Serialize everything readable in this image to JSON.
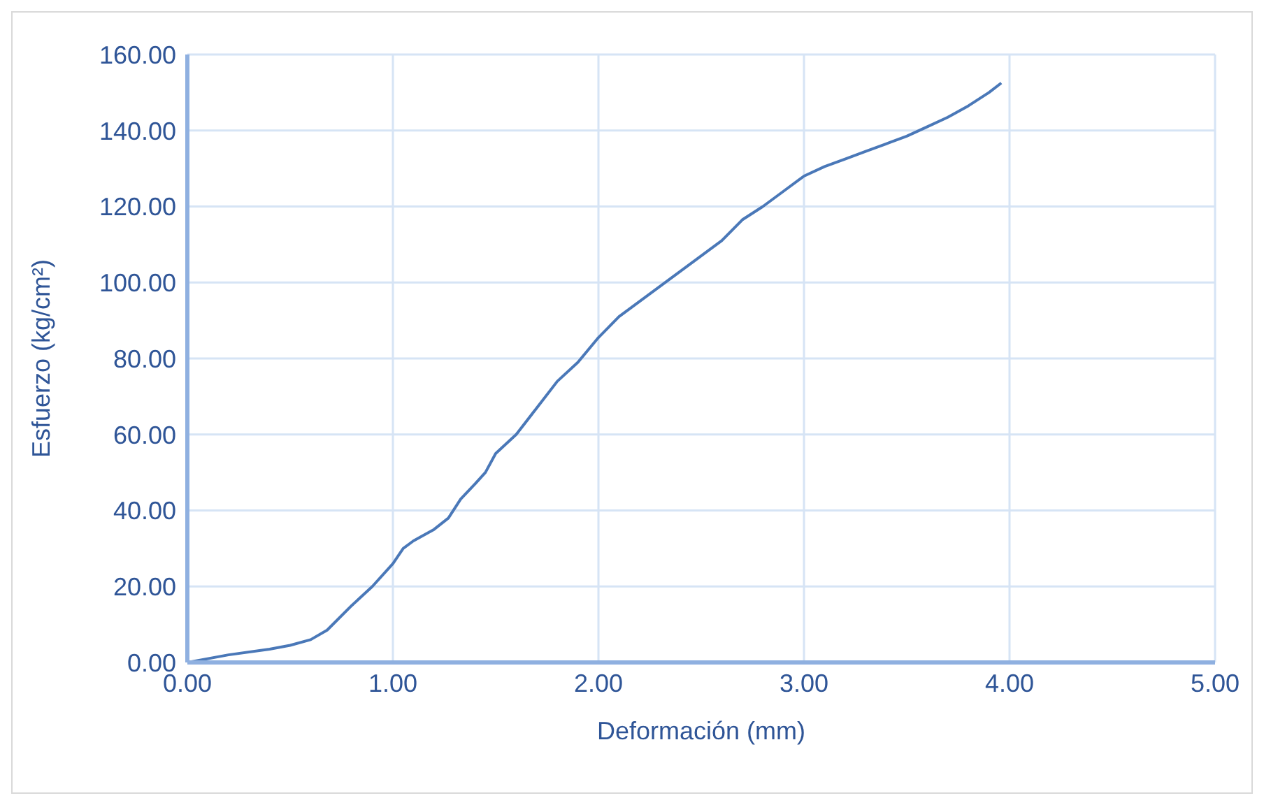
{
  "chart_data": {
    "type": "line",
    "xlabel": "Deformación (mm)",
    "ylabel": "Esfuerzo (kg/cm²)",
    "xlim": [
      0,
      5
    ],
    "xticks": [
      {
        "value": 0,
        "label": "0.00"
      },
      {
        "value": 1,
        "label": "1.00"
      },
      {
        "value": 2,
        "label": "2.00"
      },
      {
        "value": 3,
        "label": "3.00"
      },
      {
        "value": 4,
        "label": "4.00"
      },
      {
        "value": 5,
        "label": "5.00"
      }
    ],
    "ylim": [
      0,
      160
    ],
    "yticks": [
      {
        "value": 0,
        "label": "0.00"
      },
      {
        "value": 20,
        "label": "20.00"
      },
      {
        "value": 40,
        "label": "40.00"
      },
      {
        "value": 60,
        "label": "60.00"
      },
      {
        "value": 80,
        "label": "80.00"
      },
      {
        "value": 100,
        "label": "100.00"
      },
      {
        "value": 120,
        "label": "120.00"
      },
      {
        "value": 140,
        "label": "140.00"
      },
      {
        "value": 160,
        "label": "160.00"
      }
    ],
    "grid": true,
    "marker": "none",
    "line_style": "solid",
    "series": [
      {
        "color": "#4a78b8",
        "x": [
          0,
          0.2,
          0.4,
          0.5,
          0.6,
          0.68,
          0.8,
          0.9,
          1.0,
          1.05,
          1.1,
          1.2,
          1.27,
          1.33,
          1.4,
          1.45,
          1.5,
          1.6,
          1.7,
          1.8,
          1.9,
          2.0,
          2.1,
          2.2,
          2.3,
          2.4,
          2.5,
          2.6,
          2.7,
          2.8,
          2.9,
          3.0,
          3.1,
          3.2,
          3.3,
          3.4,
          3.5,
          3.6,
          3.7,
          3.8,
          3.9,
          3.96
        ],
        "values": [
          0,
          2,
          3.5,
          4.5,
          6,
          8.5,
          15,
          20,
          26,
          30,
          32,
          35,
          38,
          43,
          47,
          50,
          55,
          60,
          67,
          74,
          79,
          85.5,
          91,
          95,
          99,
          103,
          107,
          111,
          116.5,
          120,
          124,
          128,
          130.5,
          132.5,
          134.5,
          136.5,
          138.5,
          141,
          143.5,
          146.5,
          150,
          152.5
        ]
      }
    ]
  }
}
